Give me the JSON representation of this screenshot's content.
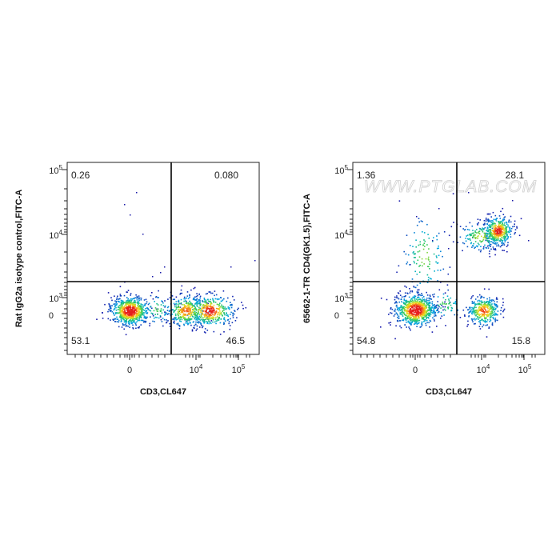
{
  "watermark": "WWW.PTGLAB.COM",
  "chart_data": [
    {
      "type": "scatter",
      "xlabel": "CD3,CL647",
      "ylabel": "Rat IgG2a isotype control,FITC-A",
      "x_ticks": [
        "0",
        "10^4",
        "10^5"
      ],
      "y_ticks": [
        "0",
        "10^3",
        "10^4",
        "10^5"
      ],
      "quadrants": {
        "top_left": "0.26",
        "top_right": "0.080",
        "bottom_left": "53.1",
        "bottom_right": "46.5"
      },
      "populations": [
        {
          "center": [
            0,
            0
          ],
          "share": 53.1
        },
        {
          "center": [
            15000,
            0
          ],
          "share": 46.5
        },
        {
          "center": [
            -500,
            12000
          ],
          "share": 0.26
        },
        {
          "center": [
            15000,
            3000
          ],
          "share": 0.08
        }
      ]
    },
    {
      "type": "scatter",
      "xlabel": "CD3,CL647",
      "ylabel": "65662-1-TR CD4(GK1.5),FITC-A",
      "x_ticks": [
        "0",
        "10^4",
        "10^5"
      ],
      "y_ticks": [
        "0",
        "10^3",
        "10^4",
        "10^5"
      ],
      "quadrants": {
        "top_left": "1.36",
        "top_right": "28.1",
        "bottom_left": "54.8",
        "bottom_right": "15.8"
      },
      "populations": [
        {
          "center": [
            0,
            0
          ],
          "share": 54.8
        },
        {
          "center": [
            20000,
            0
          ],
          "share": 15.8
        },
        {
          "center": [
            22000,
            12000
          ],
          "share": 28.1
        },
        {
          "center": [
            500,
            4000
          ],
          "share": 1.36
        }
      ]
    }
  ]
}
